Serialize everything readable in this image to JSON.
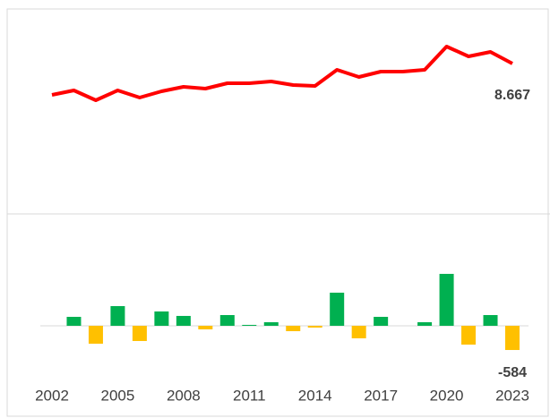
{
  "chart_data": [
    {
      "type": "line",
      "color": "#ff0000",
      "values": [
        7092,
        7317,
        6822,
        7317,
        6957,
        7272,
        7497,
        7407,
        7677,
        7677,
        7767,
        7587,
        7542,
        8352,
        7992,
        8262,
        8262,
        8352,
        9522,
        9027,
        9252,
        8667
      ],
      "value_labels": [
        null,
        null,
        null,
        null,
        null,
        null,
        null,
        null,
        null,
        null,
        null,
        null,
        null,
        null,
        null,
        null,
        null,
        null,
        null,
        null,
        null,
        "8.667"
      ],
      "ylim": [
        1512,
        11412
      ]
    },
    {
      "type": "bar",
      "positive_color": "#00b050",
      "negative_color": "#ffc000",
      "categories": [
        "2002",
        null,
        null,
        "2005",
        null,
        null,
        "2008",
        null,
        null,
        "2011",
        null,
        null,
        "2014",
        null,
        null,
        "2017",
        null,
        null,
        "2020",
        null,
        null,
        "2023"
      ],
      "values": [
        null,
        216,
        -432,
        475,
        -367,
        346,
        238,
        -86,
        259,
        22,
        86,
        -130,
        -43,
        799,
        -302,
        216,
        0,
        86,
        1253,
        -454,
        259,
        -584
      ],
      "ylim": [
        -1210,
        2462
      ]
    }
  ]
}
